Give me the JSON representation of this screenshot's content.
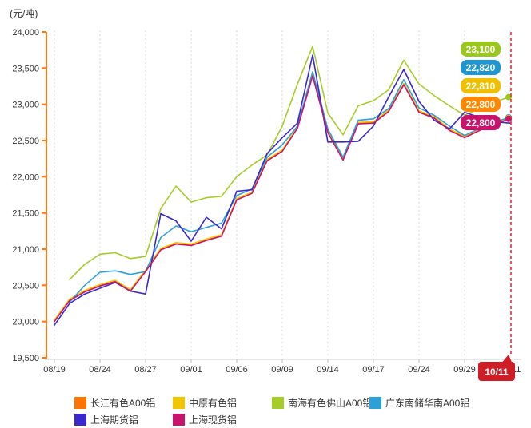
{
  "unit_label": "(元/吨)",
  "chart_data": {
    "type": "line",
    "title": "",
    "xlabel": "",
    "ylabel": "元/吨",
    "ylim": [
      19500,
      24000
    ],
    "grid": "vertical-dotted",
    "legend_position": "bottom",
    "y_ticks": [
      {
        "label": "24,000",
        "value": 24000
      },
      {
        "label": "23,500",
        "value": 23500
      },
      {
        "label": "23,000",
        "value": 23000
      },
      {
        "label": "22,500",
        "value": 22500
      },
      {
        "label": "22,000",
        "value": 22000
      },
      {
        "label": "21,500",
        "value": 21500
      },
      {
        "label": "21,000",
        "value": 21000
      },
      {
        "label": "20,500",
        "value": 20500
      },
      {
        "label": "20,000",
        "value": 20000
      },
      {
        "label": "19,500",
        "value": 19500
      }
    ],
    "x_tick_labels": [
      "08/19",
      "08/24",
      "08/27",
      "09/01",
      "09/06",
      "09/09",
      "09/14",
      "09/17",
      "09/24",
      "09/29",
      "10/11"
    ],
    "points_per_tick": 3,
    "series": [
      {
        "key": "changjiang",
        "name": "长江有色A00铝",
        "color": "#ff7300",
        "values": [
          20010,
          20300,
          20420,
          20500,
          20560,
          20430,
          20700,
          21000,
          21080,
          21060,
          21130,
          21190,
          21690,
          21775,
          22230,
          22360,
          22680,
          23400,
          22620,
          22240,
          22740,
          22750,
          22910,
          23280,
          22900,
          22820,
          22650,
          22550,
          22650,
          22740,
          22800
        ]
      },
      {
        "key": "zhongyuan",
        "name": "中原有色铝",
        "color": "#f2c500",
        "values": [
          20020,
          20310,
          20430,
          20510,
          20570,
          20440,
          20710,
          21010,
          21090,
          21070,
          21140,
          21200,
          21700,
          21785,
          22240,
          22370,
          22690,
          23410,
          22630,
          22250,
          22750,
          22760,
          22920,
          23290,
          22910,
          22830,
          22660,
          22560,
          22660,
          22750,
          22810
        ]
      },
      {
        "key": "nanhai",
        "name": "南海有色佛山A00铝",
        "color": "#a6cc29",
        "values": [
          null,
          20580,
          20790,
          20930,
          20950,
          20870,
          20900,
          21560,
          21870,
          21650,
          21710,
          21730,
          22000,
          22160,
          22300,
          22700,
          23280,
          23800,
          22880,
          22580,
          22980,
          23050,
          23200,
          23610,
          23280,
          23120,
          22980,
          22850,
          22940,
          23040,
          23100
        ]
      },
      {
        "key": "guangdong",
        "name": "广东南储华南A00铝",
        "color": "#2ea0d8",
        "values": [
          null,
          20270,
          20500,
          20680,
          20700,
          20650,
          20690,
          21160,
          21320,
          21240,
          21300,
          21360,
          21740,
          21830,
          22270,
          22440,
          22700,
          23450,
          22660,
          22270,
          22780,
          22800,
          22940,
          23340,
          22950,
          22850,
          22700,
          22570,
          22670,
          22760,
          22820
        ]
      },
      {
        "key": "shanghai-futures",
        "name": "上海期货铝",
        "color": "#3a28cc",
        "values": [
          19950,
          20250,
          20380,
          20460,
          20540,
          20420,
          20380,
          21490,
          21390,
          21110,
          21440,
          21280,
          21800,
          21820,
          22320,
          22540,
          22740,
          23680,
          22480,
          22480,
          22490,
          22700,
          23100,
          23480,
          23040,
          22780,
          22660,
          22890,
          22820,
          22760,
          22740
        ]
      },
      {
        "key": "shanghai-spot",
        "name": "上海现货铝",
        "color": "#c9146e",
        "values": [
          20000,
          20290,
          20410,
          20490,
          20550,
          20420,
          20690,
          20990,
          21070,
          21050,
          21120,
          21180,
          21680,
          21770,
          22220,
          22350,
          22670,
          23390,
          22610,
          22230,
          22730,
          22740,
          22900,
          23270,
          22890,
          22810,
          22640,
          22540,
          22640,
          22730,
          22800
        ]
      }
    ],
    "end_value_labels": [
      {
        "series": "南海有色佛山A00铝",
        "label": "23,100",
        "value": 23100,
        "color": "#9bc81e"
      },
      {
        "series": "广东南储华南A00铝",
        "label": "22,820",
        "value": 22820,
        "color": "#1d96d2"
      },
      {
        "series": "中原有色铝",
        "label": "22,810",
        "value": 22810,
        "color": "#f0c000"
      },
      {
        "series": "长江有色A00铝",
        "label": "22,800",
        "value": 22800,
        "color": "#ff8800"
      },
      {
        "series": "上海现货铝",
        "label": "22,800",
        "value": 22800,
        "color": "#c9146e"
      }
    ],
    "current_date_marker": {
      "label": "10/11",
      "color": "#cf1d25"
    }
  },
  "legend": {
    "rows": [
      [
        {
          "label": "长江有色A00铝",
          "color": "#ff7300"
        },
        {
          "label": "中原有色铝",
          "color": "#f2c500"
        },
        {
          "label": "南海有色佛山A00铝",
          "color": "#a6cc29"
        },
        {
          "label": "广东南储华南A00铝",
          "color": "#2ea0d8"
        }
      ],
      [
        {
          "label": "上海期货铝",
          "color": "#3a28cc"
        },
        {
          "label": "上海现货铝",
          "color": "#c9146e"
        }
      ]
    ]
  }
}
